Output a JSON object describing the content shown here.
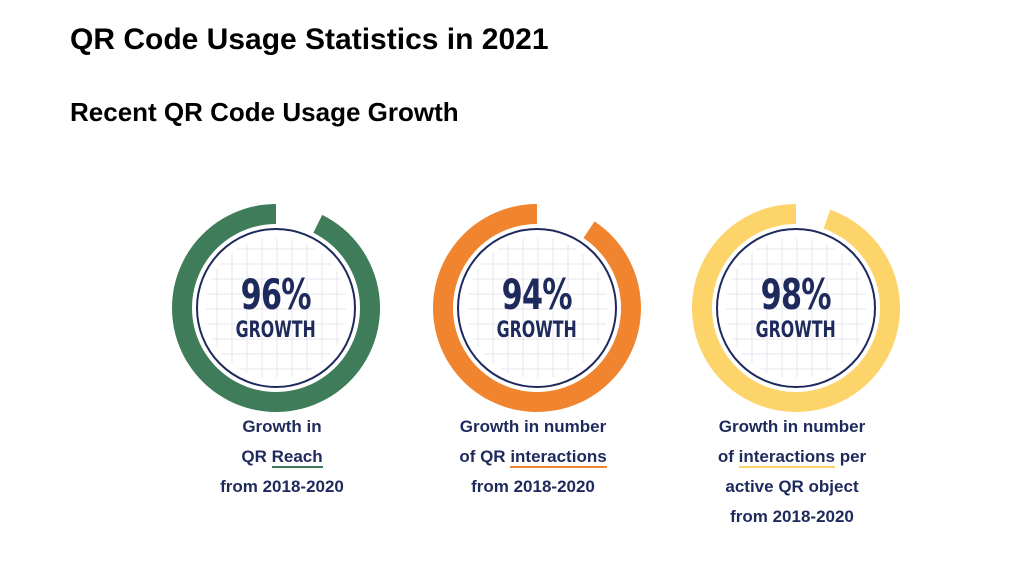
{
  "title": "QR Code Usage Statistics in 2021",
  "subtitle": "Recent QR Code Usage Growth",
  "chart_data": [
    {
      "type": "pie",
      "values": [
        96
      ],
      "label": "96%",
      "sublabel": "GROWTH",
      "color": "#3f7c5a",
      "caption": [
        "Growth in",
        "QR Reach",
        "from 2018-2020"
      ],
      "highlight": "Reach",
      "highlight_color": "#3f7c5a"
    },
    {
      "type": "pie",
      "values": [
        94
      ],
      "label": "94%",
      "sublabel": "GROWTH",
      "color": "#f0842f",
      "caption": [
        "Growth in number",
        "of QR interactions",
        "from 2018-2020"
      ],
      "highlight": "interactions",
      "highlight_color": "#f0842f"
    },
    {
      "type": "pie",
      "values": [
        98
      ],
      "label": "98%",
      "sublabel": "GROWTH",
      "color": "#fdd46a",
      "caption": [
        "Growth in number",
        "of interactions per",
        "active QR object",
        "from 2018-2020"
      ],
      "highlight": "interactions",
      "highlight_color": "#fdd46a"
    }
  ],
  "colors": {
    "text": "#1f2a5c",
    "ring_line": "#1f2a5c",
    "grid": "#e6e6ef"
  }
}
